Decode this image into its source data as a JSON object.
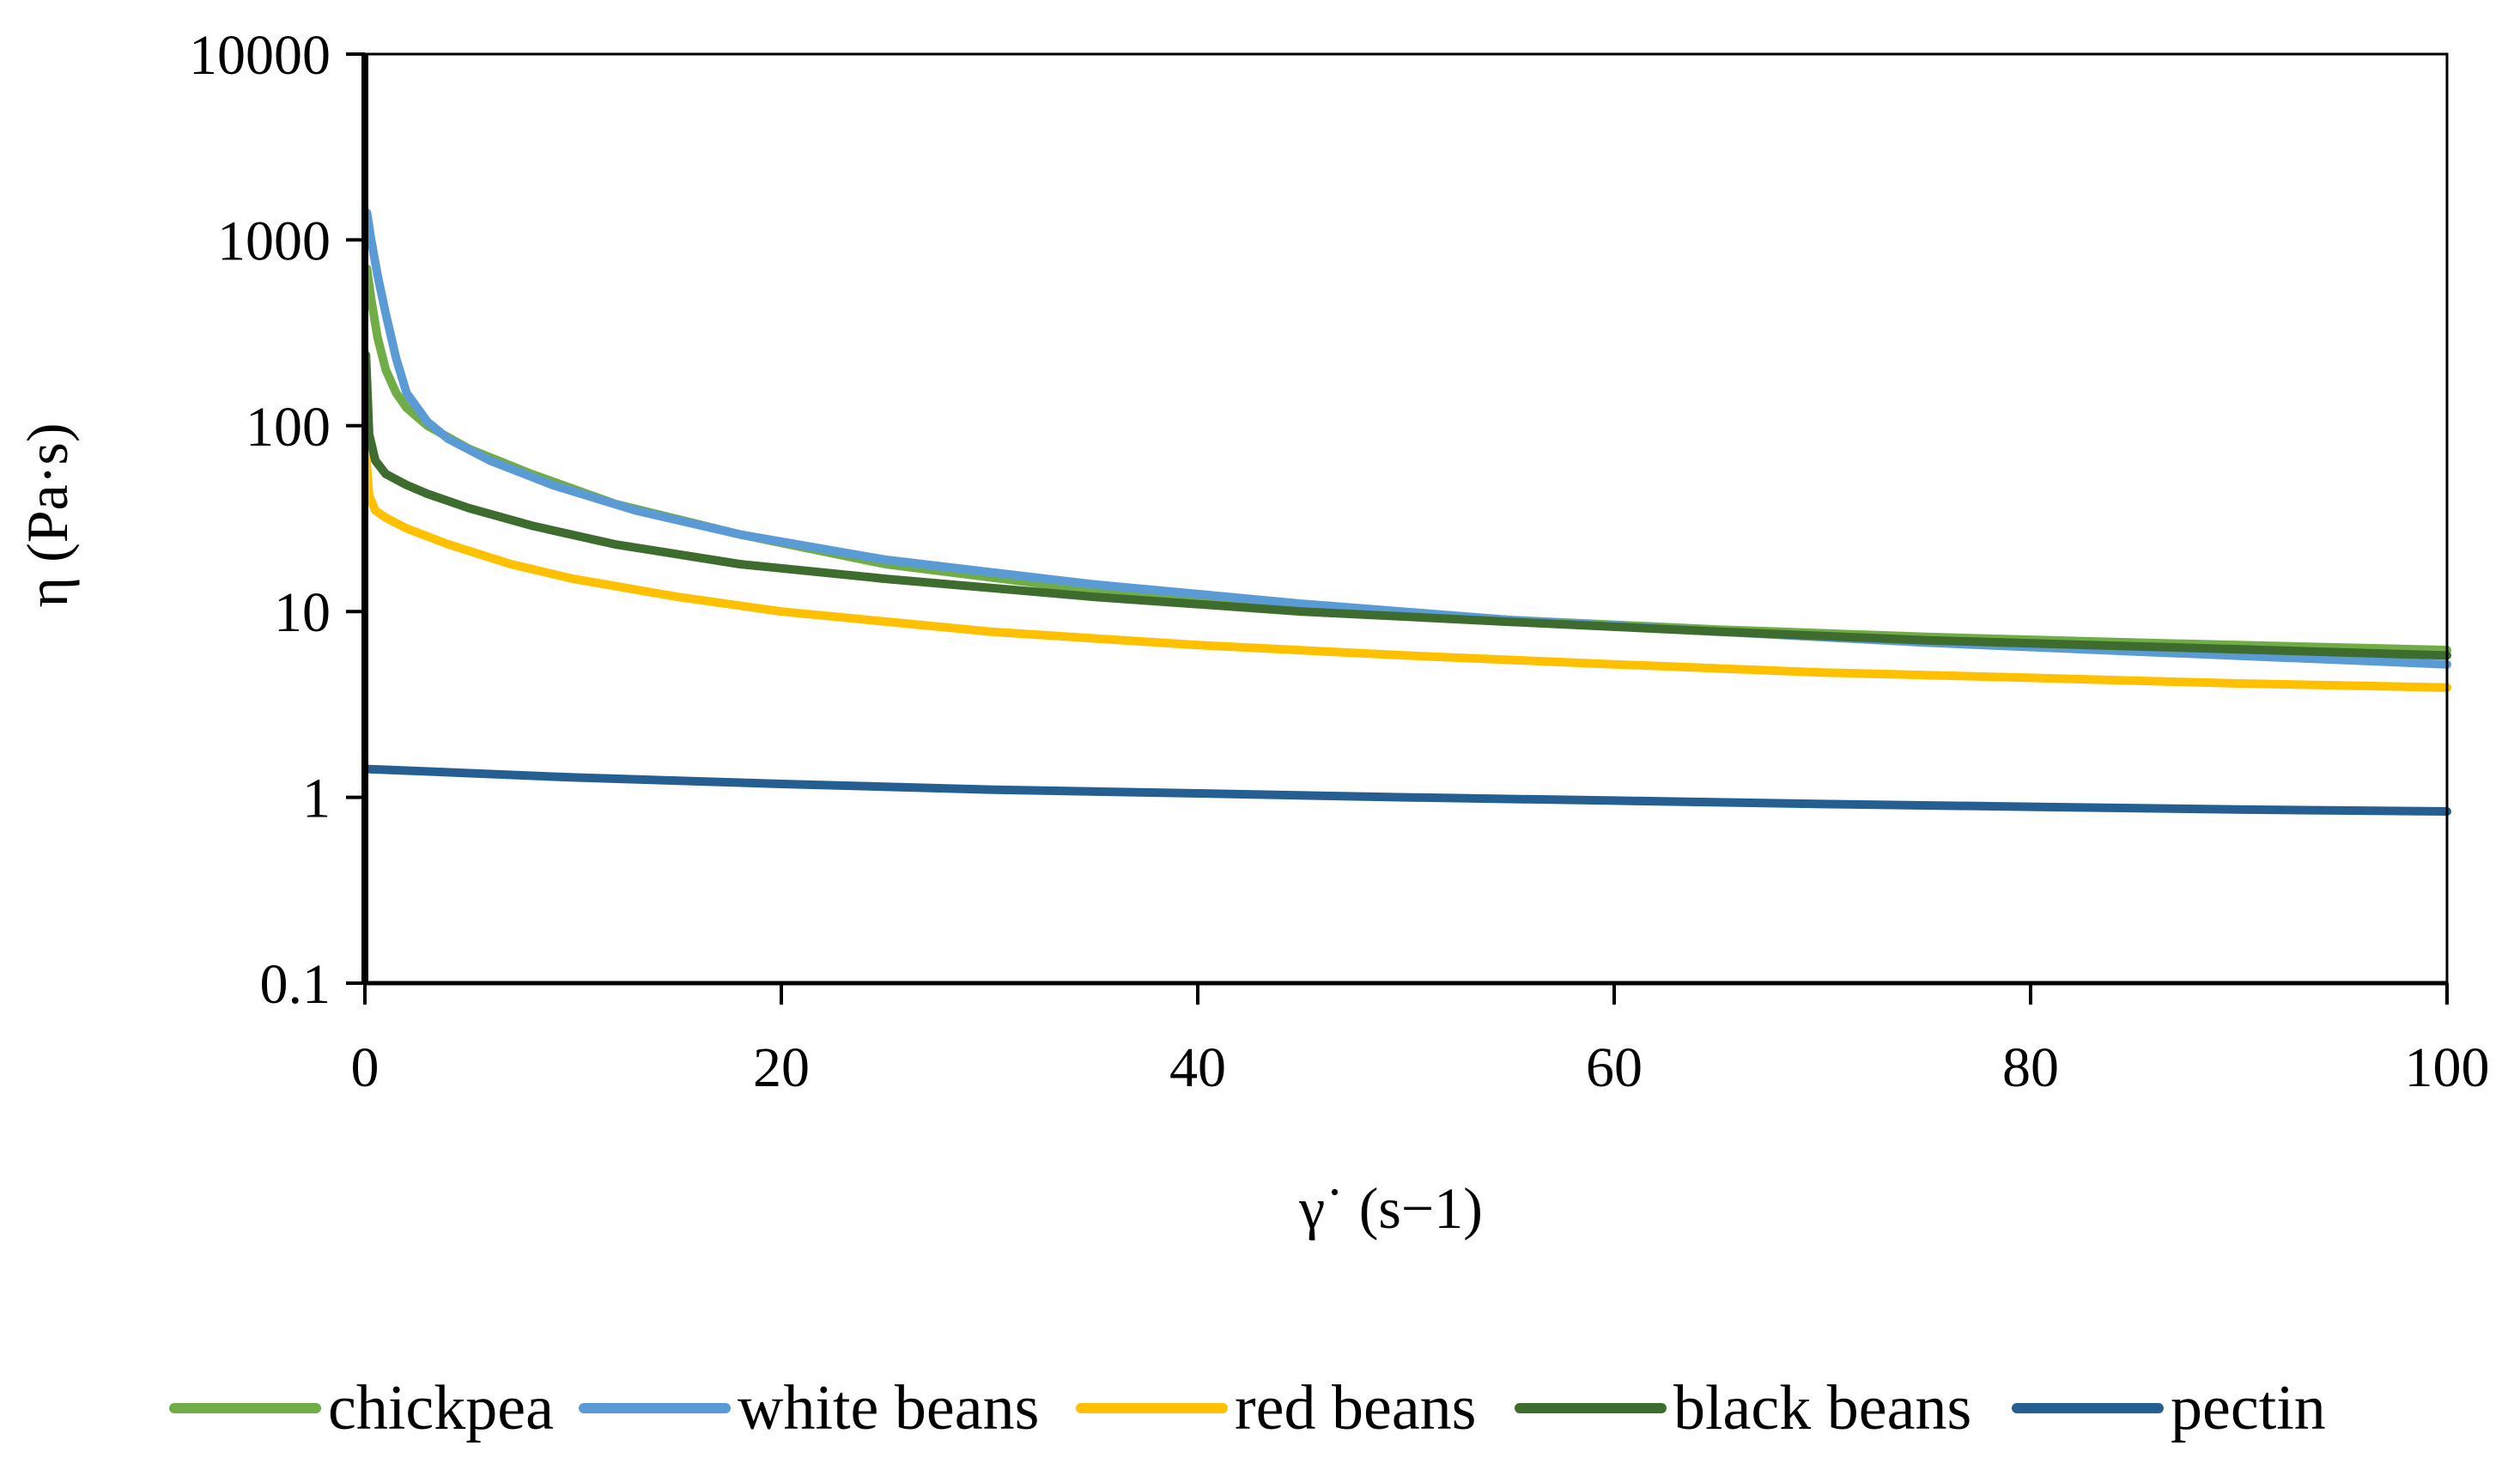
{
  "chart_data": {
    "type": "line",
    "title": "",
    "xlabel": "γ˙ (s−1)",
    "ylabel": "η (Pa·s)",
    "xlim": [
      0,
      100
    ],
    "ylim": [
      0.1,
      10000
    ],
    "yscale": "log",
    "x_ticks": [
      0,
      20,
      40,
      60,
      80,
      100
    ],
    "x_tick_labels": [
      "0",
      "20",
      "40",
      "60",
      "80",
      "100"
    ],
    "y_ticks": [
      0.1,
      1,
      10,
      100,
      1000,
      10000
    ],
    "y_tick_labels": [
      "0.1",
      "1",
      "10",
      "100",
      "1000",
      "10000"
    ],
    "grid": false,
    "legend_position": "bottom",
    "series": [
      {
        "name": "chickpea",
        "color": "#70AD47",
        "x": [
          0.1,
          0.3,
          0.6,
          1,
          1.5,
          2,
          3,
          5,
          8,
          12,
          18,
          25,
          35,
          45,
          55,
          65,
          75,
          85,
          100
        ],
        "y": [
          700,
          480,
          300,
          200,
          150,
          125,
          100,
          75,
          55,
          38,
          26,
          18,
          13,
          10.5,
          9,
          8,
          7.3,
          6.8,
          6.2
        ]
      },
      {
        "name": "white beans",
        "color": "#5B9BD5",
        "x": [
          0.1,
          0.3,
          0.6,
          1,
          1.5,
          2,
          3,
          4,
          6,
          9,
          13,
          18,
          25,
          35,
          45,
          55,
          65,
          75,
          85,
          100
        ],
        "y": [
          1400,
          1000,
          650,
          400,
          230,
          150,
          105,
          85,
          65,
          48,
          35,
          26,
          19,
          14,
          11,
          9,
          7.8,
          6.8,
          6.1,
          5.2
        ]
      },
      {
        "name": "red beans",
        "color": "#FFC000",
        "x": [
          0.05,
          0.2,
          0.5,
          1,
          2,
          4,
          7,
          10,
          15,
          20,
          30,
          40,
          50,
          60,
          70,
          80,
          90,
          100
        ],
        "y": [
          70,
          42,
          35,
          32,
          28,
          23,
          18,
          15,
          12,
          10,
          7.8,
          6.6,
          5.8,
          5.2,
          4.7,
          4.4,
          4.1,
          3.9
        ]
      },
      {
        "name": "black beans",
        "color": "#3E6B2E",
        "x": [
          0.05,
          0.2,
          0.5,
          1,
          2,
          3,
          5,
          8,
          12,
          18,
          25,
          35,
          45,
          55,
          65,
          75,
          85,
          100
        ],
        "y": [
          240,
          90,
          65,
          55,
          48,
          43,
          36,
          29,
          23,
          18,
          15,
          12,
          10,
          8.8,
          7.8,
          7,
          6.5,
          5.8
        ]
      },
      {
        "name": "pectin",
        "color": "#255E91",
        "x": [
          0.1,
          10,
          20,
          30,
          40,
          50,
          60,
          70,
          80,
          90,
          100
        ],
        "y": [
          1.42,
          1.28,
          1.18,
          1.1,
          1.05,
          1.0,
          0.96,
          0.92,
          0.89,
          0.86,
          0.84
        ]
      }
    ]
  }
}
